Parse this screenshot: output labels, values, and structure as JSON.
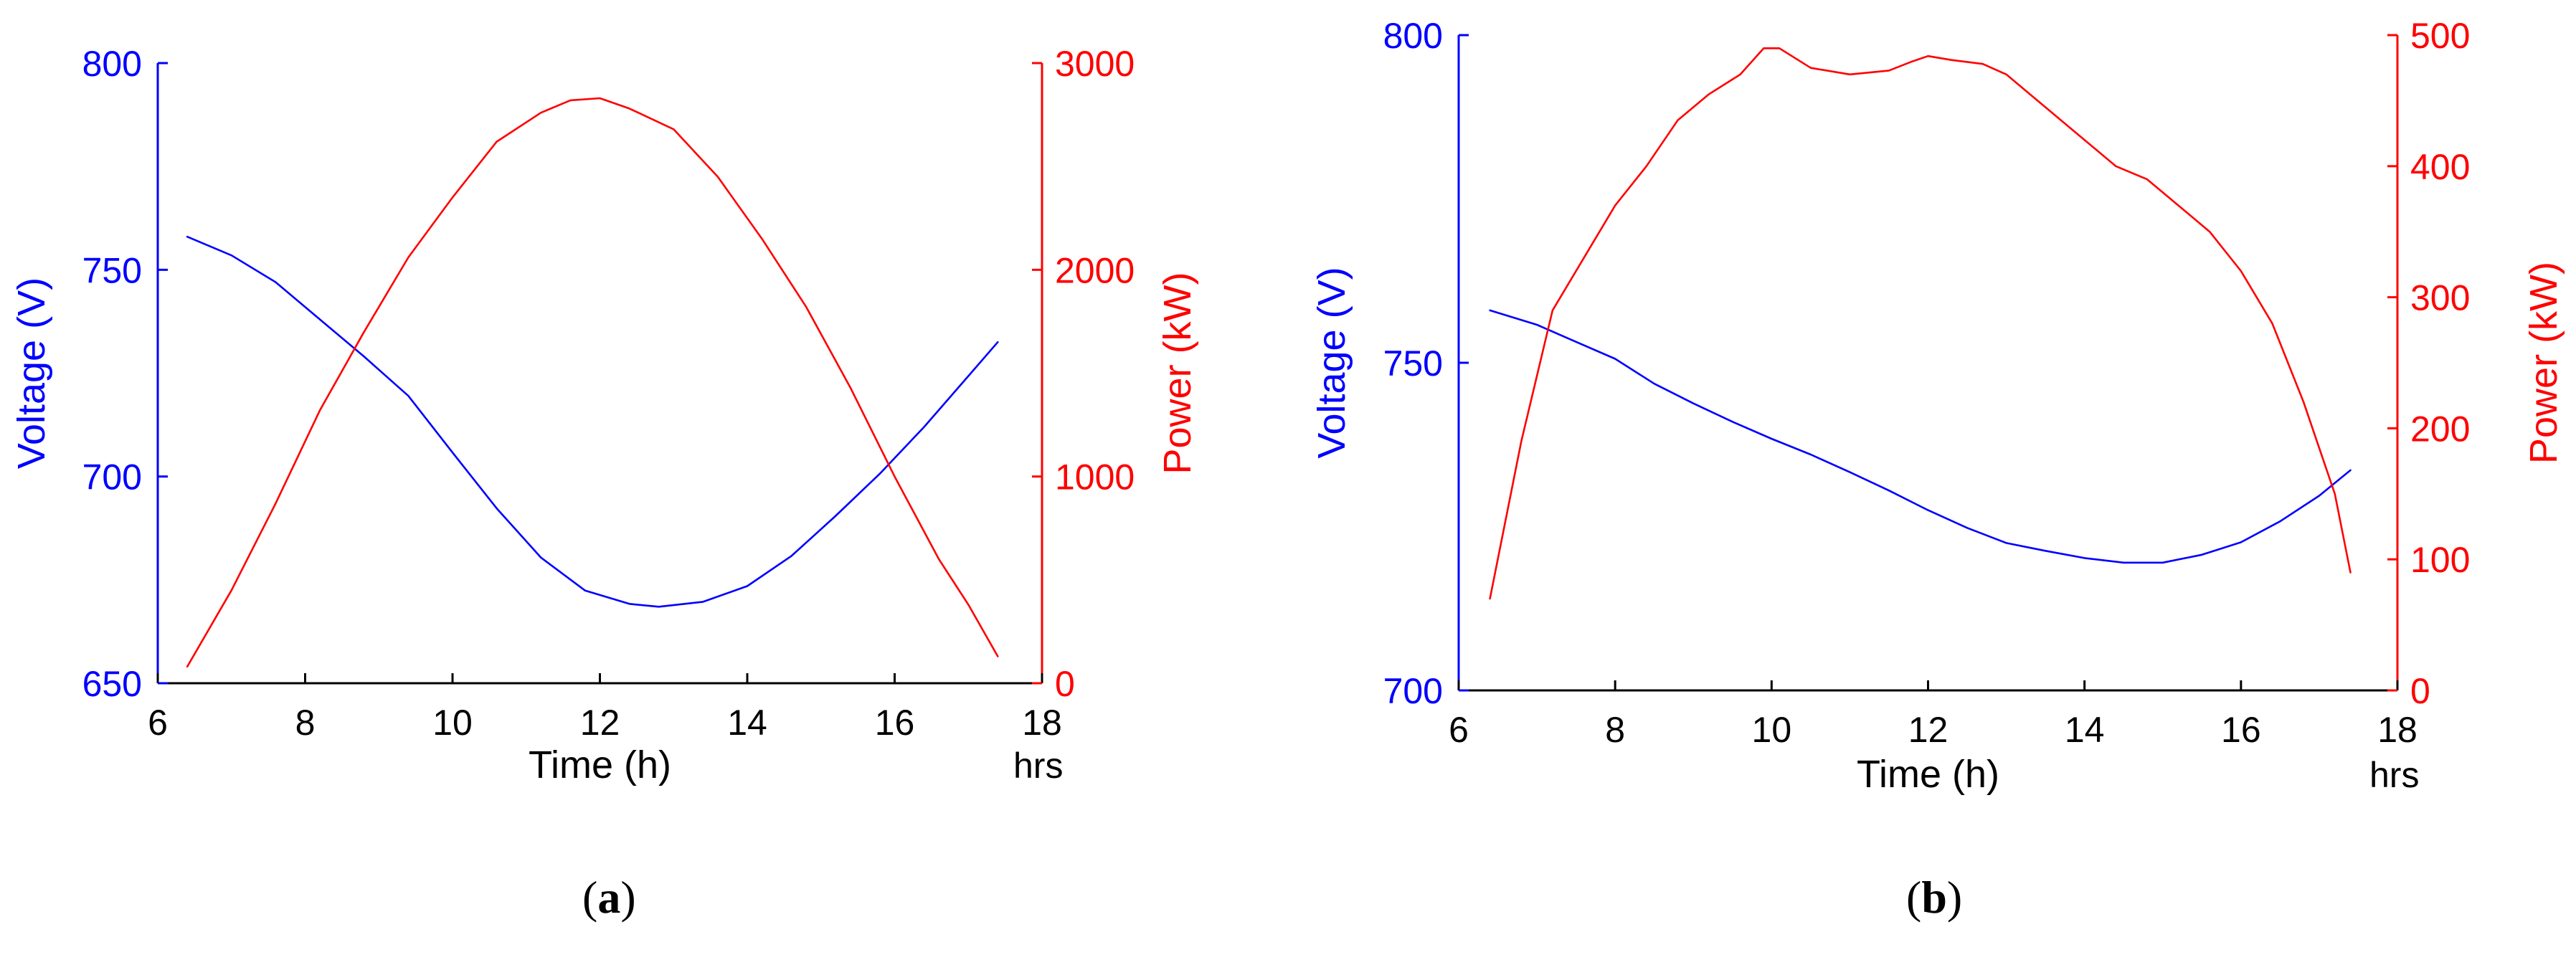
{
  "colors": {
    "left_axis": "#0000ff",
    "right_axis": "#ff0000",
    "x_axis": "#000000"
  },
  "chart_data": [
    {
      "type": "line",
      "caption_letter": "a",
      "xlabel": "Time (h)",
      "x_unit_label": "hrs",
      "ylabel_left": "Voltage (V)",
      "ylabel_right": "Power (kW)",
      "xlim": [
        6,
        18
      ],
      "xticks": [
        6,
        8,
        10,
        12,
        14,
        16,
        18
      ],
      "ylim_left": [
        650,
        800
      ],
      "yticks_left": [
        650,
        700,
        750,
        800
      ],
      "ylim_right": [
        0,
        3000
      ],
      "yticks_right": [
        0,
        1000,
        2000,
        3000
      ],
      "grid": false,
      "series": [
        {
          "axis": "left",
          "color": "#0000ff",
          "x": [
            6.4,
            7.0,
            7.6,
            8.2,
            8.8,
            9.4,
            10.0,
            10.6,
            11.2,
            11.8,
            12.4,
            12.8,
            13.4,
            14.0,
            14.6,
            15.2,
            15.8,
            16.4,
            17.0,
            17.4
          ],
          "y": [
            758,
            753.5,
            747,
            738,
            729,
            719.5,
            705.8,
            692.3,
            680.4,
            672.4,
            669.2,
            668.5,
            669.7,
            673.5,
            680.8,
            690.5,
            700.7,
            712.0,
            724.3,
            732.5
          ]
        },
        {
          "axis": "right",
          "color": "#ff0000",
          "x": [
            6.4,
            7.0,
            7.6,
            8.2,
            8.8,
            9.4,
            10.0,
            10.6,
            11.2,
            11.6,
            12.0,
            12.4,
            13.0,
            13.6,
            14.2,
            14.8,
            15.4,
            16.0,
            16.6,
            17.0,
            17.4
          ],
          "y": [
            80,
            450,
            870,
            1320,
            1700,
            2060,
            2350,
            2620,
            2760,
            2820,
            2830,
            2780,
            2680,
            2450,
            2150,
            1820,
            1430,
            1000,
            600,
            380,
            130
          ]
        }
      ]
    },
    {
      "type": "line",
      "caption_letter": "b",
      "xlabel": "Time (h)",
      "x_unit_label": "hrs",
      "ylabel_left": "Voltage (V)",
      "ylabel_right": "Power (kW)",
      "xlim": [
        6,
        18
      ],
      "xticks": [
        6,
        8,
        10,
        12,
        14,
        16,
        18
      ],
      "ylim_left": [
        700,
        800
      ],
      "yticks_left": [
        700,
        750,
        800
      ],
      "ylim_right": [
        0,
        500
      ],
      "yticks_right": [
        0,
        100,
        200,
        300,
        400,
        500
      ],
      "grid": false,
      "series": [
        {
          "axis": "left",
          "color": "#0000ff",
          "x": [
            6.4,
            7.0,
            7.5,
            8.0,
            8.5,
            9.0,
            9.5,
            10.0,
            10.5,
            11.0,
            11.5,
            12.0,
            12.5,
            13.0,
            13.5,
            14.0,
            14.5,
            15.0,
            15.5,
            16.0,
            16.5,
            17.0,
            17.4
          ],
          "y": [
            758,
            755.8,
            753.2,
            750.6,
            746.8,
            743.8,
            741.0,
            738.4,
            736.0,
            733.3,
            730.5,
            727.5,
            724.8,
            722.5,
            721.3,
            720.2,
            719.5,
            719.5,
            720.7,
            722.6,
            725.8,
            729.7,
            733.6
          ]
        },
        {
          "axis": "right",
          "color": "#ff0000",
          "x": [
            6.4,
            6.8,
            7.2,
            7.6,
            8.0,
            8.4,
            8.8,
            9.2,
            9.6,
            9.9,
            10.1,
            10.5,
            11.0,
            11.5,
            11.8,
            12.0,
            12.3,
            12.7,
            13.0,
            13.5,
            14.0,
            14.4,
            14.8,
            15.2,
            15.6,
            16.0,
            16.4,
            16.8,
            17.2,
            17.4
          ],
          "y": [
            70,
            190,
            290,
            330,
            370,
            400,
            435,
            455,
            470,
            490,
            490,
            475,
            470,
            473,
            480,
            484,
            481,
            478,
            470,
            445,
            420,
            400,
            390,
            370,
            350,
            320,
            280,
            220,
            150,
            90
          ]
        }
      ]
    }
  ]
}
